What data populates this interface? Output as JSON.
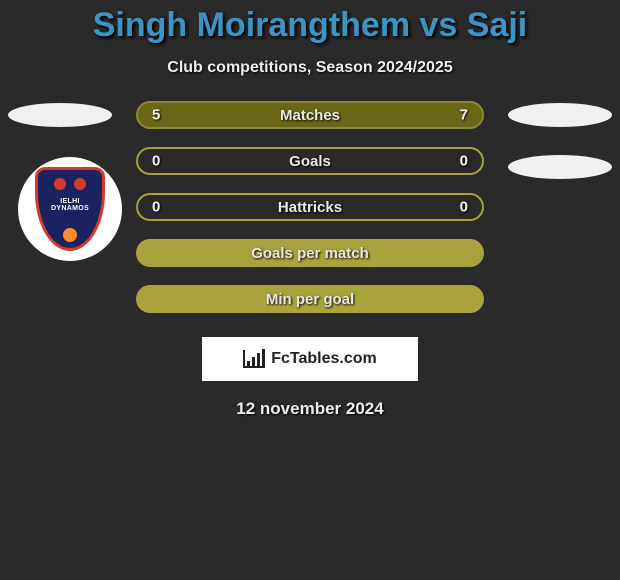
{
  "heading": "Singh Moirangthem vs Saji",
  "heading_color": "#3d94c4",
  "subheading": "Club competitions, Season 2024/2025",
  "background_color": "#2a2a2a",
  "club_badge": {
    "line1": "IELHI",
    "line2": "DYNAMOS",
    "shield_fill": "#1a2360",
    "shield_border": "#d43a2a",
    "accent": "#ff8a2a"
  },
  "rows": [
    {
      "label": "Matches",
      "left": "5",
      "right": "7",
      "bg": "#6a6618",
      "border": "#8d8a2d"
    },
    {
      "label": "Goals",
      "left": "0",
      "right": "0",
      "bg": "transparent",
      "border": "#a9a33d"
    },
    {
      "label": "Hattricks",
      "left": "0",
      "right": "0",
      "bg": "transparent",
      "border": "#a9a33d"
    },
    {
      "label": "Goals per match",
      "left": "",
      "right": "",
      "bg": "#a9a33d",
      "border": "#a9a33d"
    },
    {
      "label": "Min per goal",
      "left": "",
      "right": "",
      "bg": "#a9a33d",
      "border": "#a9a33d"
    }
  ],
  "footer_brand": "FcTables.com",
  "date": "12 november 2024",
  "ellipse_color": "#f0f0f0"
}
